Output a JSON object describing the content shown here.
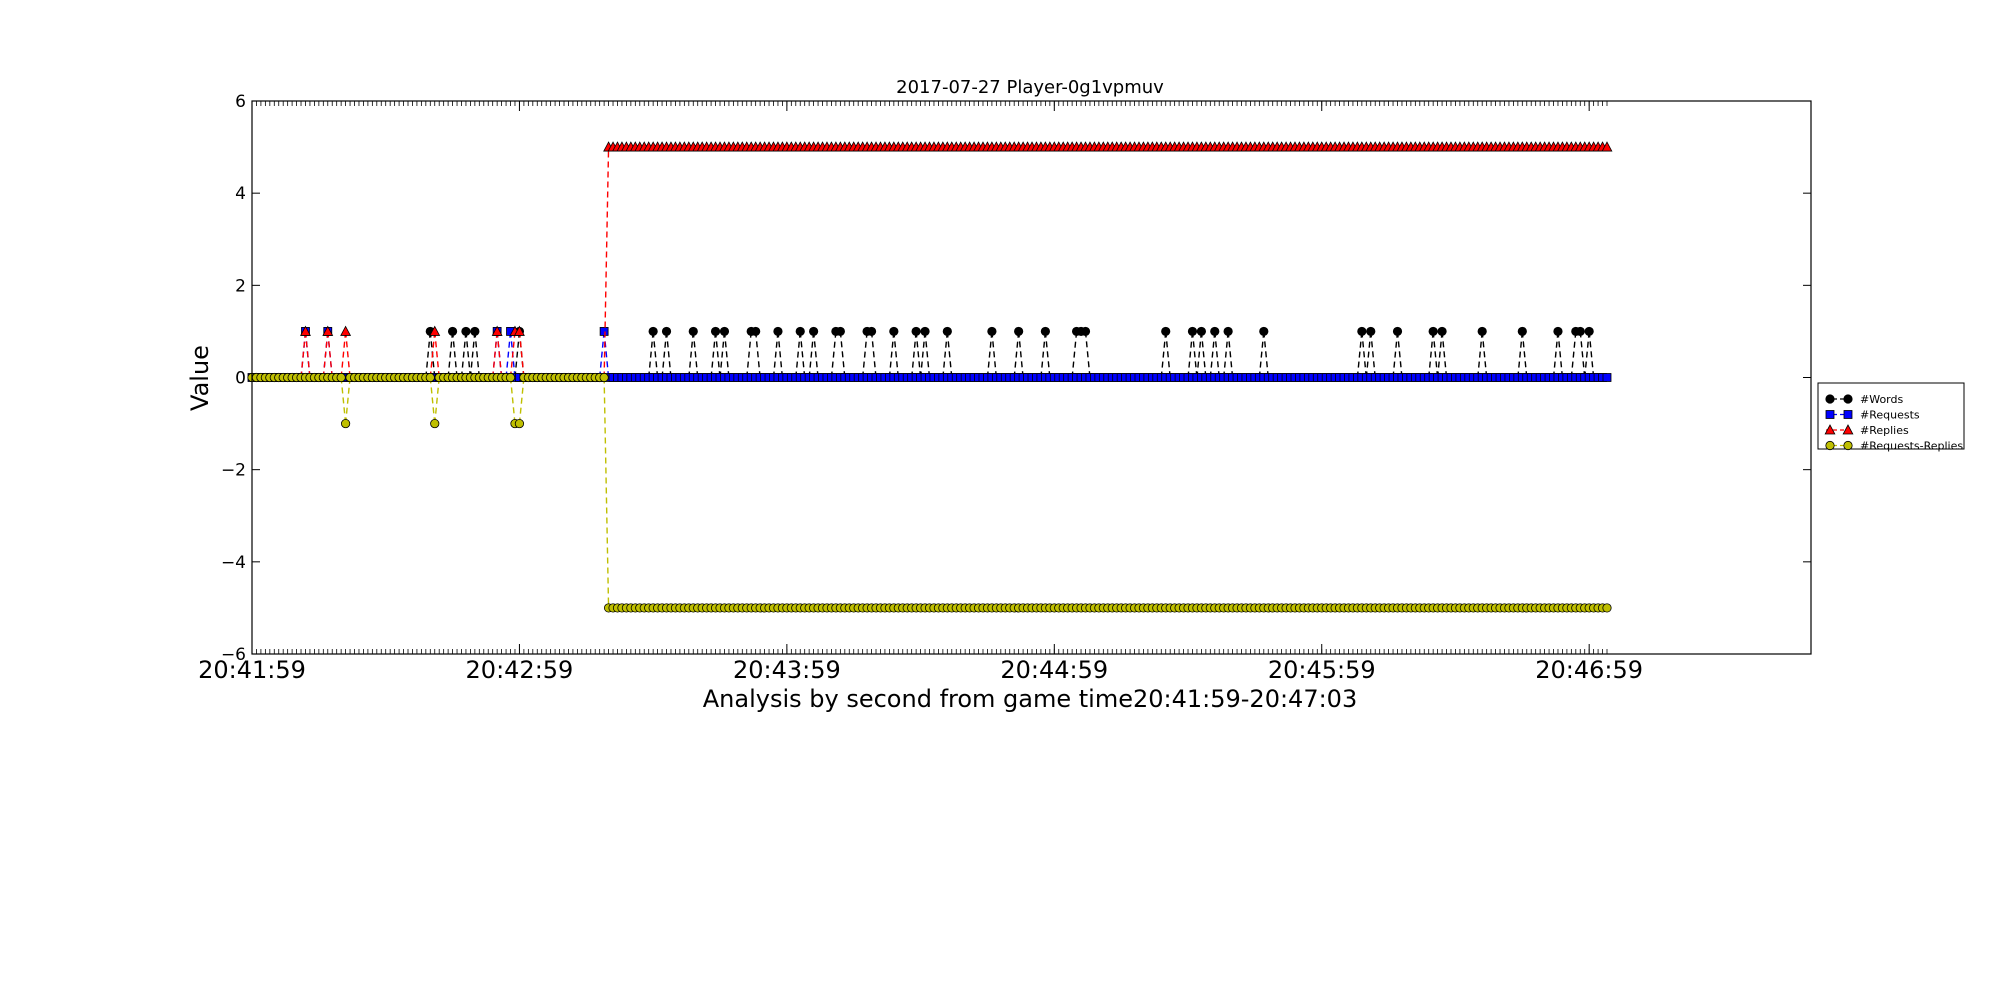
{
  "chart_data": {
    "type": "line",
    "title": "2017-07-27 Player-0g1vpmuv",
    "xlabel": "Analysis by second from game time20:41:59-20:47:03",
    "ylabel": "Value",
    "ylim": [
      -6,
      6
    ],
    "xlim": [
      "20:41:59",
      "20:47:29"
    ],
    "yticks": [
      6,
      4,
      2,
      0,
      -2,
      -4,
      -6
    ],
    "ytick_labels": [
      "6",
      "4",
      "2",
      "0",
      "−2",
      "−4",
      "−6"
    ],
    "xtick_labels": [
      "20:41:59",
      "20:42:59",
      "20:43:59",
      "20:44:59",
      "20:45:59",
      "20:46:59"
    ],
    "grid": false,
    "legend_position": "right, outside plot",
    "series": [
      {
        "name": "#Words",
        "color": "#000000",
        "marker": "circle",
        "line_style": "dashed",
        "draw_zero_markers": false,
        "base": 0,
        "events": [
          {
            "x": "20:42:39",
            "y": 1
          },
          {
            "x": "20:42:44",
            "y": 1
          },
          {
            "x": "20:42:47",
            "y": 1
          },
          {
            "x": "20:42:49",
            "y": 1
          },
          {
            "x": "20:42:59",
            "y": 1
          },
          {
            "x": "20:43:29",
            "y": 1
          },
          {
            "x": "20:43:32",
            "y": 1
          },
          {
            "x": "20:43:38",
            "y": 1
          },
          {
            "x": "20:43:43",
            "y": 1
          },
          {
            "x": "20:43:45",
            "y": 1
          },
          {
            "x": "20:43:51",
            "y": 1
          },
          {
            "x": "20:43:52",
            "y": 1
          },
          {
            "x": "20:43:57",
            "y": 1
          },
          {
            "x": "20:44:02",
            "y": 1
          },
          {
            "x": "20:44:05",
            "y": 1
          },
          {
            "x": "20:44:10",
            "y": 1
          },
          {
            "x": "20:44:11",
            "y": 1
          },
          {
            "x": "20:44:17",
            "y": 1
          },
          {
            "x": "20:44:18",
            "y": 1
          },
          {
            "x": "20:44:23",
            "y": 1
          },
          {
            "x": "20:44:28",
            "y": 1
          },
          {
            "x": "20:44:30",
            "y": 1
          },
          {
            "x": "20:44:35",
            "y": 1
          },
          {
            "x": "20:44:45",
            "y": 1
          },
          {
            "x": "20:44:51",
            "y": 1
          },
          {
            "x": "20:44:57",
            "y": 1
          },
          {
            "x": "20:45:04",
            "y": 1
          },
          {
            "x": "20:45:05",
            "y": 1
          },
          {
            "x": "20:45:06",
            "y": 1
          },
          {
            "x": "20:45:24",
            "y": 1
          },
          {
            "x": "20:45:30",
            "y": 1
          },
          {
            "x": "20:45:32",
            "y": 1
          },
          {
            "x": "20:45:35",
            "y": 1
          },
          {
            "x": "20:45:38",
            "y": 1
          },
          {
            "x": "20:45:46",
            "y": 1
          },
          {
            "x": "20:46:08",
            "y": 1
          },
          {
            "x": "20:46:10",
            "y": 1
          },
          {
            "x": "20:46:16",
            "y": 1
          },
          {
            "x": "20:46:24",
            "y": 1
          },
          {
            "x": "20:46:26",
            "y": 1
          },
          {
            "x": "20:46:35",
            "y": 1
          },
          {
            "x": "20:46:44",
            "y": 1
          },
          {
            "x": "20:46:52",
            "y": 1
          },
          {
            "x": "20:46:56",
            "y": 1
          },
          {
            "x": "20:46:57",
            "y": 1
          },
          {
            "x": "20:46:59",
            "y": 1
          }
        ]
      },
      {
        "name": "#Requests",
        "color": "#0000ff",
        "marker": "square",
        "line_style": "dashed",
        "draw_zero_markers": true,
        "base": 0,
        "events": [
          {
            "x": "20:42:11",
            "y": 1
          },
          {
            "x": "20:42:16",
            "y": 1
          },
          {
            "x": "20:42:54",
            "y": 1
          },
          {
            "x": "20:42:57",
            "y": 1
          },
          {
            "x": "20:43:18",
            "y": 1
          }
        ]
      },
      {
        "name": "#Replies",
        "color": "#ff0000",
        "marker": "triangle",
        "line_style": "dashed",
        "draw_zero_markers": false,
        "base": 0,
        "events": [
          {
            "x": "20:42:11",
            "y": 1
          },
          {
            "x": "20:42:16",
            "y": 1
          },
          {
            "x": "20:42:20",
            "y": 1
          },
          {
            "x": "20:42:40",
            "y": 1
          },
          {
            "x": "20:42:54",
            "y": 1
          },
          {
            "x": "20:42:58",
            "y": 1
          },
          {
            "x": "20:42:59",
            "y": 1
          }
        ],
        "plateau": {
          "from": "20:43:19",
          "to": "20:47:03",
          "y": 5
        }
      },
      {
        "name": "#Requests-Replies",
        "color": "#bfbf00",
        "marker": "circle",
        "line_style": "dashed",
        "draw_zero_markers": true,
        "base": 0,
        "events": [
          {
            "x": "20:42:20",
            "y": -1
          },
          {
            "x": "20:42:40",
            "y": -1
          },
          {
            "x": "20:42:58",
            "y": -1
          },
          {
            "x": "20:42:59",
            "y": -1
          }
        ],
        "plateau": {
          "from": "20:43:19",
          "to": "20:47:03",
          "y": -5
        }
      }
    ]
  }
}
